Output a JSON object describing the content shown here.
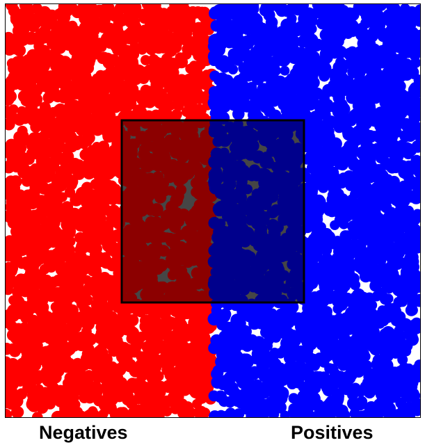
{
  "labels": {
    "negatives": "Negatives",
    "positives": "Positives"
  },
  "colors": {
    "negative_region": "#ff0000",
    "positive_region": "#0000ff",
    "background": "#ffffff",
    "overlay_fill": "#000000",
    "overlay_stroke": "#000000",
    "gap_inside_overlay": "#808080"
  },
  "overlay_opacity": 0.45
}
